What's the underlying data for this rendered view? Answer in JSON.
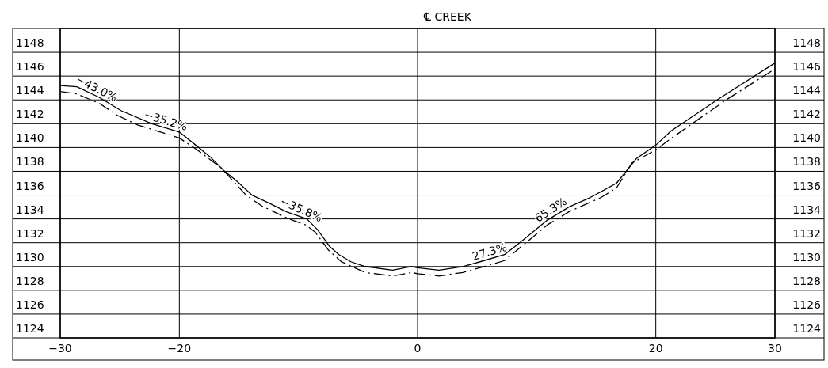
{
  "chart_data": {
    "type": "line",
    "title": "℄ CREEK",
    "xlim": [
      -30,
      30
    ],
    "xticks": [
      -30,
      -20,
      0,
      20,
      30
    ],
    "ylim": [
      1124,
      1150
    ],
    "yticks": [
      1124,
      1126,
      1128,
      1130,
      1132,
      1134,
      1136,
      1138,
      1140,
      1142,
      1144,
      1146,
      1148
    ],
    "y2lim": [
      1124,
      1150
    ],
    "y2ticks": [
      1124,
      1126,
      1128,
      1130,
      1132,
      1134,
      1136,
      1138,
      1140,
      1142,
      1144,
      1146,
      1148
    ],
    "grid": true,
    "series": [
      {
        "color": "#000000",
        "line_style": "solid",
        "x": [
          -30,
          -28.6,
          -26.7,
          -24.9,
          -22.3,
          -20,
          -18.5,
          -17.4,
          -16.3,
          -15.2,
          -13.9,
          -12.4,
          -11.0,
          -9.3,
          -8.4,
          -7.4,
          -6.6,
          -5.6,
          -4.4,
          -2.1,
          -0.5,
          0,
          1.8,
          3.8,
          5.6,
          7.3,
          8.7,
          10.9,
          12.7,
          14.5,
          16.7,
          18.4,
          20,
          21.3,
          25.3,
          30
        ],
        "values": [
          1145.2,
          1145.1,
          1144.2,
          1143.1,
          1142.0,
          1141.3,
          1140.1,
          1139.2,
          1138.1,
          1137.2,
          1136.0,
          1135.3,
          1134.6,
          1134.0,
          1133.1,
          1131.7,
          1131.0,
          1130.4,
          1130.0,
          1129.7,
          1130.0,
          1129.9,
          1129.7,
          1130.0,
          1130.5,
          1131.0,
          1132.1,
          1133.9,
          1135.0,
          1135.8,
          1137.0,
          1139.1,
          1140.2,
          1141.4,
          1144.1,
          1147.1
        ]
      },
      {
        "color": "#000000",
        "line_style": "dashed",
        "x": [
          -30,
          -28.6,
          -26.7,
          -25.2,
          -23.5,
          -20,
          -18.5,
          -16.5,
          -15.4,
          -14.4,
          -13.1,
          -10.8,
          -9.4,
          -8.6,
          -7.5,
          -6.4,
          -4.4,
          -2.1,
          -0.5,
          0,
          1.8,
          3.8,
          5.6,
          7.3,
          8.5,
          10.9,
          12.7,
          15.4,
          16.7,
          18.0,
          20,
          21.2,
          25.9,
          30
        ],
        "values": [
          1144.7,
          1144.5,
          1143.7,
          1142.7,
          1141.9,
          1140.8,
          1139.8,
          1138.3,
          1137.1,
          1136.0,
          1135.1,
          1134.0,
          1133.5,
          1132.9,
          1131.4,
          1130.4,
          1129.5,
          1129.2,
          1129.5,
          1129.4,
          1129.2,
          1129.5,
          1130.0,
          1130.5,
          1131.5,
          1133.5,
          1134.6,
          1135.8,
          1136.6,
          1138.7,
          1139.8,
          1140.7,
          1144.0,
          1146.6
        ]
      }
    ],
    "annotations": [
      {
        "text": "−43.0%",
        "x": -27.2,
        "y": 1144.44
      },
      {
        "text": "−35.2%",
        "x": -21.3,
        "y": 1141.7
      },
      {
        "text": "−35.8%",
        "x": -10,
        "y": 1134.25
      },
      {
        "text": "27.3%",
        "x": 6.2,
        "y": 1130.68
      },
      {
        "text": "65.3%",
        "x": 11.5,
        "y": 1134.27
      }
    ]
  }
}
